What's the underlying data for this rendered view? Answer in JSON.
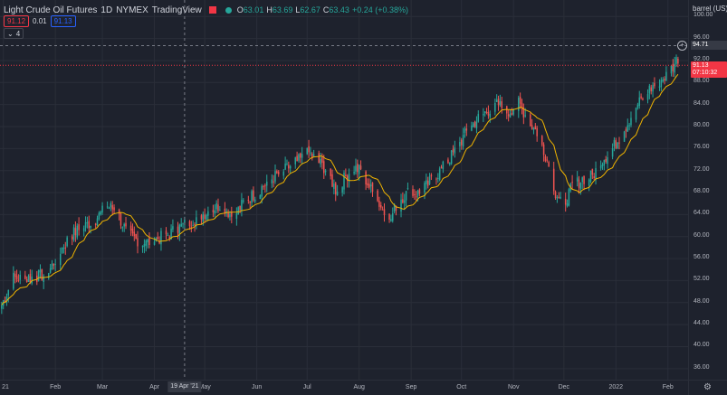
{
  "legend": {
    "title": "Light Crude Oil Futures",
    "interval": "1D",
    "exchange": "NYMEX",
    "source": "TradingView",
    "ohlc": [
      {
        "k": "O",
        "v": "63.01"
      },
      {
        "k": "H",
        "v": "63.69"
      },
      {
        "k": "L",
        "v": "62.67"
      },
      {
        "k": "C",
        "v": "63.43"
      }
    ],
    "change": "+0.24 (+0.38%)",
    "sell_price": "91.12",
    "spread": "0.01",
    "buy_price": "91.13",
    "indicators_count": "4"
  },
  "axis": {
    "unit_label": "barrel (US)",
    "crosshair_price": "94.71",
    "last_price": "91.13",
    "countdown": "07:10:32",
    "crosshair_date": "19 Apr '21"
  },
  "colors": {
    "background": "#1e222d",
    "grid": "#2a2e39",
    "up": "#26a69a",
    "down": "#ef5350",
    "ma": "#f0b400",
    "last_price": "#f23645"
  },
  "chart_data": {
    "type": "candlestick",
    "symbol": "Light Crude Oil Futures",
    "interval": "1D",
    "ylim": [
      34,
      103
    ],
    "y_ticks": [
      36,
      40,
      44,
      48,
      52,
      56,
      60,
      64,
      68,
      72,
      76,
      80,
      84,
      88,
      92,
      96,
      100
    ],
    "y_tick_labels": [
      "36.00",
      "40.00",
      "44.00",
      "48.00",
      "52.00",
      "56.00",
      "60.00",
      "64.00",
      "68.00",
      "72.00",
      "76.00",
      "80.00",
      "84.00",
      "88.00",
      "92.00",
      "96.00",
      "100.00"
    ],
    "x_tick_labels": [
      "21",
      "Feb",
      "Mar",
      "Apr",
      "May",
      "Jun",
      "Jul",
      "Aug",
      "Sep",
      "Oct",
      "Nov",
      "Dec",
      "2022",
      "Feb"
    ],
    "x_tick_days": [
      1,
      32,
      60,
      91,
      121,
      152,
      182,
      213,
      244,
      274,
      305,
      335,
      366,
      397
    ],
    "x_range_days": [
      -1,
      409
    ],
    "crosshair_day": 109,
    "crosshair_price": 94.71,
    "last_price": 91.13,
    "ma_label": "moving average",
    "close_keypoints": [
      [
        0,
        47.6
      ],
      [
        7,
        52.5
      ],
      [
        14,
        52.3
      ],
      [
        21,
        52.8
      ],
      [
        27,
        53.0
      ],
      [
        35,
        57.5
      ],
      [
        42,
        60.5
      ],
      [
        49,
        61.8
      ],
      [
        56,
        63.2
      ],
      [
        63,
        65.5
      ],
      [
        68,
        64.8
      ],
      [
        74,
        61.0
      ],
      [
        80,
        59.5
      ],
      [
        86,
        58.8
      ],
      [
        92,
        59.5
      ],
      [
        98,
        60.2
      ],
      [
        105,
        61.5
      ],
      [
        111,
        62.5
      ],
      [
        118,
        63.8
      ],
      [
        124,
        64.8
      ],
      [
        131,
        65.8
      ],
      [
        138,
        63.5
      ],
      [
        145,
        66.5
      ],
      [
        152,
        68.0
      ],
      [
        159,
        70.2
      ],
      [
        166,
        71.5
      ],
      [
        172,
        72.8
      ],
      [
        178,
        74.0
      ],
      [
        183,
        75.2
      ],
      [
        188,
        73.8
      ],
      [
        194,
        72.0
      ],
      [
        199,
        68.5
      ],
      [
        204,
        70.5
      ],
      [
        209,
        72.5
      ],
      [
        214,
        72.0
      ],
      [
        220,
        68.5
      ],
      [
        226,
        65.5
      ],
      [
        231,
        62.5
      ],
      [
        236,
        66.5
      ],
      [
        242,
        68.0
      ],
      [
        249,
        67.8
      ],
      [
        256,
        70.2
      ],
      [
        263,
        72.5
      ],
      [
        270,
        75.5
      ],
      [
        277,
        79.0
      ],
      [
        284,
        81.5
      ],
      [
        290,
        83.0
      ],
      [
        296,
        84.0
      ],
      [
        302,
        82.5
      ],
      [
        308,
        84.5
      ],
      [
        314,
        81.0
      ],
      [
        320,
        78.5
      ],
      [
        325,
        74.0
      ],
      [
        330,
        68.0
      ],
      [
        335,
        66.0
      ],
      [
        340,
        69.0
      ],
      [
        346,
        70.5
      ],
      [
        352,
        71.0
      ],
      [
        358,
        74.0
      ],
      [
        364,
        76.0
      ],
      [
        371,
        79.5
      ],
      [
        378,
        83.5
      ],
      [
        385,
        86.5
      ],
      [
        391,
        88.0
      ],
      [
        397,
        89.5
      ],
      [
        403,
        92.5
      ],
      [
        405,
        91.13
      ]
    ]
  }
}
